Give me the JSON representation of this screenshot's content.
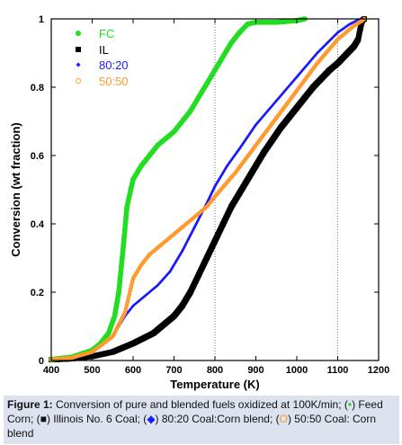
{
  "chart_data": {
    "type": "line",
    "xlabel": "Temperature (K)",
    "ylabel": "Conversion (wt fraction)",
    "xlim": [
      400,
      1200
    ],
    "ylim": [
      0,
      1
    ],
    "x_ticks": [
      400,
      500,
      600,
      700,
      800,
      900,
      1000,
      1100,
      1200
    ],
    "y_ticks": [
      0,
      0.2,
      0.4,
      0.6,
      0.8,
      1
    ],
    "y_tick_labels": [
      "0",
      "0.2",
      "0.4",
      "0.6",
      "0.8",
      "1"
    ],
    "grid": "vertical dotted at 800 and 1100, horizontal dotted at 1",
    "legend_position": "top-left",
    "series": [
      {
        "name": "FC",
        "color": "#22dd22",
        "marker": "circle-filled",
        "x": [
          400,
          450,
          500,
          520,
          540,
          555,
          565,
          575,
          585,
          600,
          620,
          640,
          660,
          680,
          700,
          720,
          740,
          760,
          780,
          800,
          820,
          840,
          860,
          880,
          900,
          950,
          1000,
          1020
        ],
        "y": [
          0.003,
          0.01,
          0.03,
          0.05,
          0.08,
          0.13,
          0.2,
          0.32,
          0.45,
          0.53,
          0.57,
          0.6,
          0.63,
          0.65,
          0.67,
          0.7,
          0.73,
          0.77,
          0.81,
          0.85,
          0.89,
          0.93,
          0.96,
          0.985,
          0.99,
          0.99,
          0.995,
          1.0
        ]
      },
      {
        "name": "IL",
        "color": "#000000",
        "marker": "square-filled",
        "x": [
          400,
          450,
          500,
          550,
          600,
          650,
          700,
          720,
          740,
          760,
          780,
          800,
          820,
          840,
          860,
          880,
          900,
          920,
          940,
          960,
          980,
          1000,
          1020,
          1040,
          1060,
          1080,
          1100,
          1120,
          1140,
          1150,
          1155,
          1160,
          1165
        ],
        "y": [
          0.002,
          0.005,
          0.012,
          0.025,
          0.05,
          0.08,
          0.13,
          0.16,
          0.2,
          0.25,
          0.3,
          0.35,
          0.4,
          0.45,
          0.49,
          0.53,
          0.57,
          0.61,
          0.645,
          0.68,
          0.71,
          0.74,
          0.77,
          0.8,
          0.825,
          0.85,
          0.87,
          0.895,
          0.92,
          0.94,
          0.97,
          0.995,
          1.0
        ]
      },
      {
        "name": "80:20",
        "color": "#1a1aff",
        "marker": "diamond-filled",
        "x": [
          400,
          450,
          500,
          550,
          580,
          600,
          630,
          660,
          690,
          720,
          750,
          780,
          800,
          830,
          860,
          900,
          950,
          1000,
          1050,
          1100,
          1130,
          1150,
          1165
        ],
        "y": [
          0.003,
          0.008,
          0.025,
          0.07,
          0.13,
          0.16,
          0.19,
          0.22,
          0.26,
          0.32,
          0.39,
          0.46,
          0.51,
          0.57,
          0.62,
          0.69,
          0.76,
          0.83,
          0.9,
          0.96,
          0.985,
          0.997,
          1.0
        ]
      },
      {
        "name": "50:50",
        "color": "#ff9a2e",
        "marker": "circle-open",
        "x": [
          400,
          450,
          500,
          550,
          580,
          600,
          620,
          640,
          660,
          680,
          700,
          720,
          750,
          780,
          800,
          850,
          900,
          950,
          1000,
          1050,
          1100,
          1140,
          1160,
          1165
        ],
        "y": [
          0.003,
          0.008,
          0.025,
          0.07,
          0.14,
          0.24,
          0.28,
          0.31,
          0.33,
          0.35,
          0.37,
          0.39,
          0.42,
          0.45,
          0.48,
          0.55,
          0.63,
          0.71,
          0.79,
          0.87,
          0.94,
          0.98,
          0.995,
          1.0
        ]
      }
    ]
  },
  "caption": {
    "label": "Figure 1:",
    "text_1": " Conversion of pure and blended fuels oxidized at 100K/min; (",
    "sym_fc": "•",
    "text_2": ") Feed Corn; (",
    "sym_il": "■",
    "text_3": ") Illinois No. 6 Coal; (",
    "sym_8020": "◆",
    "text_4": ") 80:20 Coal:Corn blend; (",
    "sym_5050": "O",
    "text_5": ") 50:50 Coal: Corn blend"
  }
}
